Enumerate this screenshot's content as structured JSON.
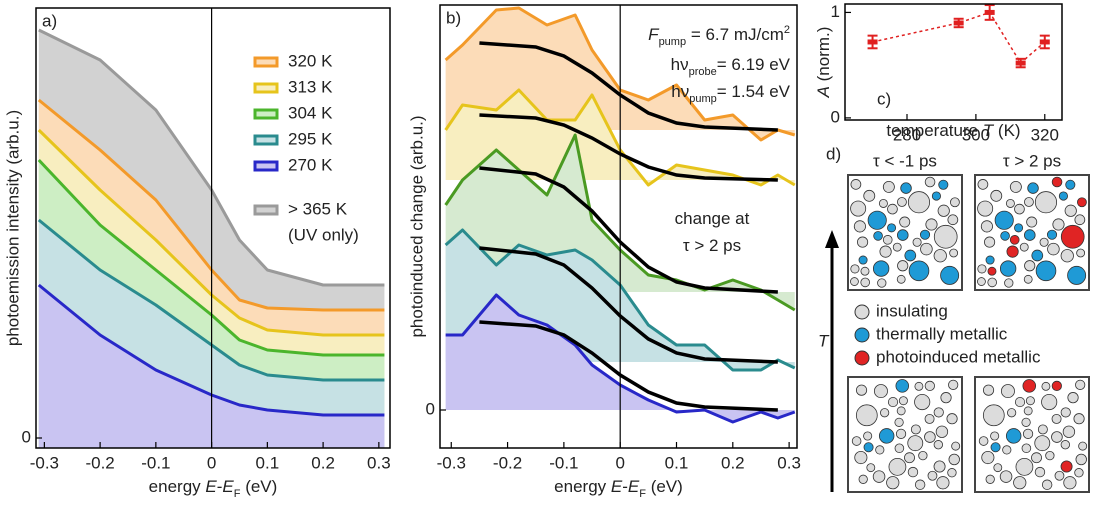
{
  "chart_data": [
    {
      "type": "line",
      "panel_label": "a)",
      "x_label": [
        "energy ",
        "E",
        "-",
        "E",
        "F",
        " (eV)"
      ],
      "y_label": "photoemission intensity (arb.u.)",
      "x": [
        -0.31,
        -0.2,
        -0.1,
        0,
        0.05,
        0.1,
        0.2,
        0.31
      ],
      "series": [
        {
          "name": "320 K",
          "color": "#f39a2a",
          "fill": "#fcdcb8",
          "values": [
            3.38,
            2.88,
            2.38,
            1.68,
            1.38,
            1.3,
            1.28,
            1.28
          ]
        },
        {
          "name": "313 K",
          "color": "#e6c41c",
          "fill": "#f8eec0",
          "values": [
            3.08,
            2.48,
            1.98,
            1.43,
            1.2,
            1.08,
            1.03,
            1.03
          ]
        },
        {
          "name": "304 K",
          "color": "#4bb52c",
          "fill": "#cdeec4",
          "values": [
            2.78,
            2.13,
            1.68,
            1.23,
            0.98,
            0.88,
            0.83,
            0.83
          ]
        },
        {
          "name": "295 K",
          "color": "#2a8b8e",
          "fill": "#c6e1e4",
          "values": [
            2.18,
            1.68,
            1.33,
            0.93,
            0.73,
            0.63,
            0.58,
            0.58
          ]
        },
        {
          "name": "270 K",
          "color": "#2828c8",
          "fill": "#c9c4f2",
          "values": [
            1.53,
            1.03,
            0.68,
            0.43,
            0.33,
            0.28,
            0.23,
            0.23
          ]
        },
        {
          "name": "> 365 K",
          "color": "#9a9a9a",
          "fill": "#d2d2d2",
          "values": [
            4.08,
            3.78,
            3.28,
            2.48,
            1.98,
            1.68,
            1.53,
            1.53
          ]
        }
      ],
      "legend_note": "(UV only)",
      "legend": "upper right",
      "xlim": [
        -0.315,
        0.32
      ],
      "ylim": [
        -0.1,
        4.3
      ],
      "xticks": [
        -0.3,
        -0.2,
        -0.1,
        0,
        0.1,
        0.2,
        0.3
      ],
      "yticks": [
        0
      ],
      "vline": 0
    },
    {
      "type": "line",
      "panel_label": "b)",
      "x_label": [
        "energy ",
        "E",
        "-",
        "E",
        "F",
        " (eV)"
      ],
      "y_label": "photoinduced change (arb.u.)",
      "x": [
        -0.31,
        -0.28,
        -0.22,
        -0.18,
        -0.13,
        -0.08,
        -0.05,
        0,
        0.05,
        0.1,
        0.15,
        0.2,
        0.25,
        0.28,
        0.31
      ],
      "series": [
        {
          "color": "#f39a2a",
          "fill": "#fcdcb8",
          "values": [
            3.5,
            3.65,
            4.0,
            4.02,
            3.85,
            3.95,
            3.6,
            3.2,
            3.1,
            3.25,
            2.9,
            2.95,
            2.7,
            2.8,
            2.75
          ]
        },
        {
          "color": "#e6c41c",
          "fill": "#f8eec0",
          "values": [
            2.8,
            3.05,
            3.0,
            3.2,
            2.9,
            2.9,
            3.15,
            2.6,
            2.25,
            2.45,
            2.4,
            2.35,
            2.25,
            2.35,
            2.25
          ]
        },
        {
          "color": "#4a9a22",
          "fill": "#d6ead0",
          "values": [
            2.05,
            2.3,
            2.6,
            2.4,
            2.15,
            2.75,
            1.9,
            1.6,
            1.35,
            1.3,
            1.2,
            1.3,
            1.2,
            1.1,
            1.0
          ]
        },
        {
          "color": "#2a8b8e",
          "fill": "#c6e1e4",
          "values": [
            1.65,
            1.8,
            1.45,
            1.65,
            1.55,
            1.6,
            1.5,
            1.25,
            0.85,
            0.65,
            0.65,
            0.4,
            0.4,
            0.5,
            0.42
          ]
        },
        {
          "color": "#2828c8",
          "fill": "#c9c4f2",
          "values": [
            0.75,
            0.75,
            1.15,
            0.95,
            0.85,
            0.65,
            0.45,
            0.25,
            0.1,
            -0.02,
            0,
            -0.12,
            -0.02,
            -0.08,
            -0.02
          ]
        }
      ],
      "fit_x": [
        -0.25,
        -0.15,
        -0.1,
        -0.05,
        0,
        0.05,
        0.1,
        0.15,
        0.28
      ],
      "fit_color": "#000000",
      "fits": [
        {
          "values": [
            3.67,
            3.63,
            3.54,
            3.37,
            3.15,
            2.97,
            2.87,
            2.83,
            2.8
          ]
        },
        {
          "values": [
            2.95,
            2.92,
            2.85,
            2.72,
            2.56,
            2.43,
            2.35,
            2.32,
            2.3
          ]
        },
        {
          "values": [
            2.42,
            2.36,
            2.23,
            1.99,
            1.68,
            1.43,
            1.28,
            1.22,
            1.18
          ]
        },
        {
          "values": [
            1.62,
            1.56,
            1.45,
            1.22,
            0.94,
            0.71,
            0.57,
            0.51,
            0.48
          ]
        },
        {
          "values": [
            0.88,
            0.84,
            0.75,
            0.57,
            0.35,
            0.18,
            0.07,
            0.03,
            0
          ]
        }
      ],
      "annotations": [
        [
          "F",
          "pump",
          " = 6.7 mJ/cm",
          "2"
        ],
        [
          "hν",
          "probe",
          "= 6.19 eV"
        ],
        [
          "hν",
          "pump",
          "= 1.54 eV"
        ],
        [
          "change at"
        ],
        [
          "τ > 2 ps"
        ]
      ],
      "xlim": [
        -0.32,
        0.314
      ],
      "ylim": [
        -0.38,
        4.05
      ],
      "xticks": [
        -0.3,
        -0.2,
        -0.1,
        0,
        0.1,
        0.2,
        0.3
      ],
      "yticks": [
        0
      ],
      "vline": 0
    },
    {
      "type": "scatter",
      "panel_label": "c)",
      "x_label": [
        "temperature ",
        "T",
        " (K)"
      ],
      "y_label": [
        "A",
        " (norm.)"
      ],
      "x": [
        270,
        295,
        304,
        313,
        320
      ],
      "values": [
        0.72,
        0.9,
        1.0,
        0.52,
        0.72
      ],
      "errors": [
        0.06,
        0.04,
        0.07,
        0.04,
        0.06
      ],
      "color": "#e02020",
      "xlim": [
        262,
        325
      ],
      "ylim": [
        -0.02,
        1.08
      ],
      "xticks": [
        280,
        300,
        320
      ],
      "yticks": [
        0,
        1
      ]
    }
  ],
  "panel_d": {
    "label": "d)",
    "columns": [
      "τ < -1 ps",
      "τ > 2 ps"
    ],
    "legend": [
      "insulating",
      "thermally metallic",
      "photoinduced metallic"
    ],
    "axis_label": "T"
  }
}
